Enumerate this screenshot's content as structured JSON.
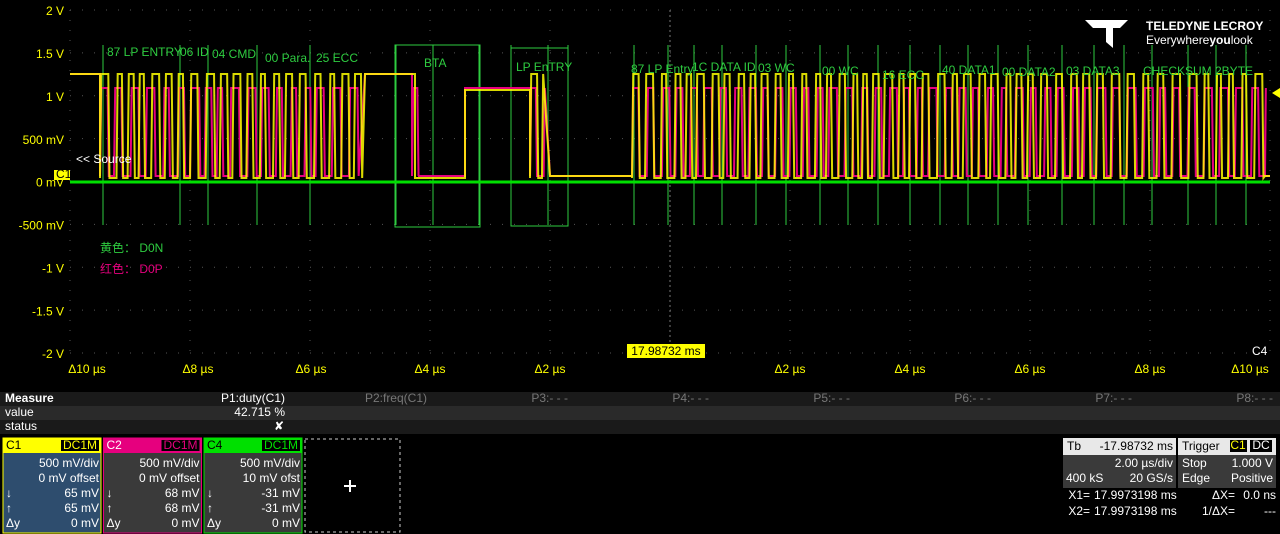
{
  "screen": {
    "y_labels": [
      "2 V",
      "1.5 V",
      "1 V",
      "500 mV",
      "0 mV",
      "-500 mV",
      "-1 V",
      "-1.5 V",
      "-2 V"
    ],
    "x_labels": [
      "Δ10 µs",
      "Δ8 µs",
      "Δ6 µs",
      "Δ4 µs",
      "Δ2 µs",
      "Δ2 µs",
      "Δ4 µs",
      "Δ6 µs",
      "Δ8 µs",
      "Δ10 µs"
    ],
    "cursor_time": "17.98732 ms",
    "source_marker": "<< Source",
    "ch_left": "C1",
    "ch_right": "C4",
    "annotations": [
      "87 LP ENTRY",
      "06 ID",
      "04 CMD",
      "00 Para.",
      "25 ECC",
      "BTA",
      "LP EnTRY",
      "87 LP Entry",
      "1C DATA ID",
      "03 WC",
      "00 WC",
      "16 ECC",
      "40 DATA1",
      "00 DATA2",
      "03 DATA3",
      "CHECKSUM 2BYTE"
    ],
    "legend": [
      "黄色：  D0N",
      "红色：  D0P"
    ],
    "logo": {
      "brand": "TELEDYNE LECROY",
      "tag_pre": "Everywhere",
      "tag_bold": "you",
      "tag_post": "look"
    }
  },
  "measure": {
    "title": "Measure",
    "params": [
      "P1:duty(C1)",
      "P2:freq(C1)",
      "P3:- - -",
      "P4:- - -",
      "P5:- - -",
      "P6:- - -",
      "P7:- - -",
      "P8:- - -"
    ],
    "rows": [
      {
        "label": "value",
        "cells": [
          "42.715 %"
        ]
      },
      {
        "label": "status",
        "cells": [
          "✘"
        ]
      }
    ]
  },
  "channels": [
    {
      "name": "C1",
      "coupling": "DC1M",
      "vdiv": "500 mV/div",
      "offset": "0 mV offset",
      "down_label": "↓",
      "down": "65 mV",
      "up_label": "↑",
      "up": "65 mV",
      "dy_label": "Δy",
      "dy": "0 mV"
    },
    {
      "name": "C2",
      "coupling": "DC1M",
      "vdiv": "500 mV/div",
      "offset": "0 mV offset",
      "down_label": "↓",
      "down": "68 mV",
      "up_label": "↑",
      "up": "68 mV",
      "dy_label": "Δy",
      "dy": "0 mV"
    },
    {
      "name": "C4",
      "coupling": "DC1M",
      "vdiv": "500 mV/div",
      "offset": "10 mV ofst",
      "down_label": "↓",
      "down": "-31 mV",
      "up_label": "↑",
      "up": "-31 mV",
      "dy_label": "Δy",
      "dy": "0 mV"
    }
  ],
  "timebase": {
    "label": "Tb",
    "delay": "-17.98732 ms",
    "tdiv": "2.00 µs/div",
    "samples": "400 kS",
    "rate": "20 GS/s"
  },
  "trigger": {
    "label": "Trigger",
    "src": "C1",
    "coupling": "DC",
    "mode": "Stop",
    "level": "1.000 V",
    "type": "Edge",
    "slope": "Positive"
  },
  "cursors": [
    {
      "label": "X1=",
      "value": "17.9973198 ms",
      "dlabel": "ΔX=",
      "dvalue": "0.0 ns"
    },
    {
      "label": "X2=",
      "value": "17.9973198 ms",
      "dlabel": "1/ΔX=",
      "dvalue": "---"
    }
  ]
}
